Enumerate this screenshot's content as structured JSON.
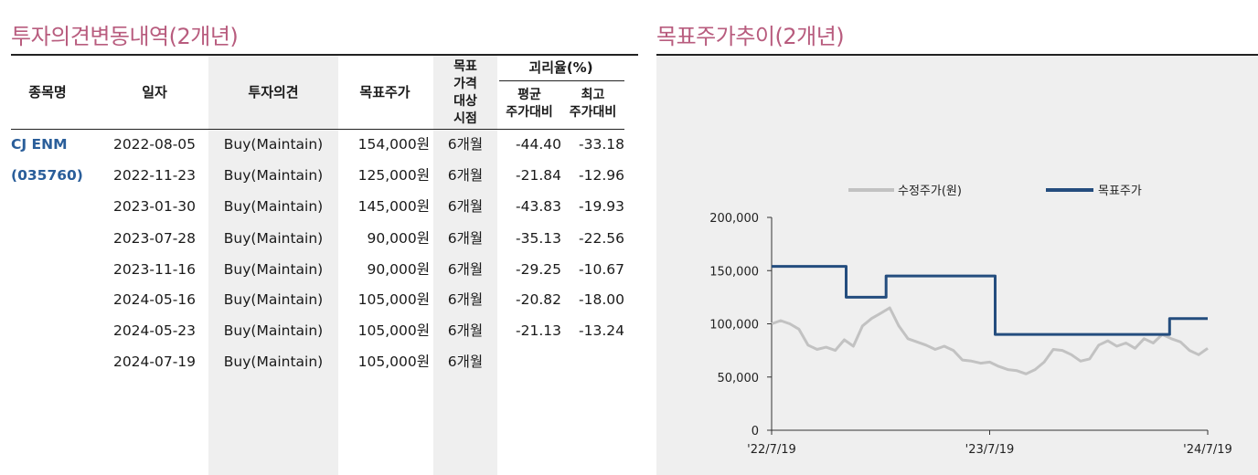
{
  "left_title": "투자의견변동내역(2개년)",
  "right_title": "목표주가추이(2개년)",
  "table": {
    "headers": {
      "name": "종목명",
      "date": "일자",
      "opinion": "투자의견",
      "target": "목표주가",
      "period_lines": [
        "목표",
        "가격",
        "대상",
        "시점"
      ],
      "gap": "괴리율(%)",
      "avg_lines": [
        "평균",
        "주가대비"
      ],
      "max_lines": [
        "최고",
        "주가대비"
      ]
    },
    "stock_name": "CJ ENM",
    "stock_code": "(035760)",
    "rows": [
      {
        "date": "2022-08-05",
        "opinion": "Buy(Maintain)",
        "target": "154,000원",
        "period": "6개월",
        "avg": "-44.40",
        "max": "-33.18"
      },
      {
        "date": "2022-11-23",
        "opinion": "Buy(Maintain)",
        "target": "125,000원",
        "period": "6개월",
        "avg": "-21.84",
        "max": "-12.96"
      },
      {
        "date": "2023-01-30",
        "opinion": "Buy(Maintain)",
        "target": "145,000원",
        "period": "6개월",
        "avg": "-43.83",
        "max": "-19.93"
      },
      {
        "date": "2023-07-28",
        "opinion": "Buy(Maintain)",
        "target": "90,000원",
        "period": "6개월",
        "avg": "-35.13",
        "max": "-22.56"
      },
      {
        "date": "2023-11-16",
        "opinion": "Buy(Maintain)",
        "target": "90,000원",
        "period": "6개월",
        "avg": "-29.25",
        "max": "-10.67"
      },
      {
        "date": "2024-05-16",
        "opinion": "Buy(Maintain)",
        "target": "105,000원",
        "period": "6개월",
        "avg": "-20.82",
        "max": "-18.00"
      },
      {
        "date": "2024-05-23",
        "opinion": "Buy(Maintain)",
        "target": "105,000원",
        "period": "6개월",
        "avg": "-21.13",
        "max": "-13.24"
      },
      {
        "date": "2024-07-19",
        "opinion": "Buy(Maintain)",
        "target": "105,000원",
        "period": "6개월",
        "avg": "",
        "max": ""
      }
    ]
  },
  "chart_data": {
    "type": "line",
    "title": "목표주가추이(2개년)",
    "xlabel": "",
    "ylabel": "",
    "x_range": [
      "2022-07-19",
      "2024-07-19"
    ],
    "x_tick_labels": [
      "'22/7/19",
      "'23/7/19",
      "'24/7/19"
    ],
    "x_tick_positions": [
      0,
      12,
      24
    ],
    "ylim": [
      0,
      200000
    ],
    "y_ticks": [
      0,
      50000,
      100000,
      150000,
      200000
    ],
    "y_tick_labels": [
      "0",
      "50,000",
      "100,000",
      "150,000",
      "200,000"
    ],
    "legend": [
      "수정주가(원)",
      "목표주가"
    ],
    "series": [
      {
        "name": "수정주가(원)",
        "color": "#c2c2c2",
        "x_months": [
          0,
          0.5,
          1,
          1.5,
          2,
          2.5,
          3,
          3.5,
          4,
          4.5,
          5,
          5.5,
          6,
          6.5,
          7,
          7.5,
          8,
          8.5,
          9,
          9.5,
          10,
          10.5,
          11,
          11.5,
          12,
          12.5,
          13,
          13.5,
          14,
          14.5,
          15,
          15.5,
          16,
          16.5,
          17,
          17.5,
          18,
          18.5,
          19,
          19.5,
          20,
          20.5,
          21,
          21.5,
          22,
          22.5,
          23,
          23.5,
          24
        ],
        "values": [
          100000,
          103000,
          100000,
          95000,
          80000,
          76000,
          78000,
          75000,
          85000,
          79000,
          98000,
          105000,
          110000,
          115000,
          98000,
          86000,
          83000,
          80000,
          76000,
          79000,
          75000,
          66000,
          65000,
          63000,
          64000,
          60000,
          57000,
          56000,
          53000,
          57000,
          64000,
          76000,
          75000,
          71000,
          65000,
          67000,
          80000,
          84000,
          79000,
          82000,
          77000,
          86000,
          82000,
          90000,
          86000,
          83000,
          75000,
          71000,
          77000
        ]
      },
      {
        "name": "목표주가",
        "color": "#244d7e",
        "x_months": [
          0,
          4.1,
          4.1,
          6.3,
          6.3,
          12.3,
          12.3,
          21.9,
          21.9,
          22.1,
          22.1,
          24
        ],
        "values": [
          154000,
          154000,
          125000,
          125000,
          145000,
          145000,
          90000,
          90000,
          105000,
          105000,
          105000,
          105000
        ]
      }
    ]
  },
  "colors": {
    "title": "#b85c7e",
    "stock_name": "#2a5e9a",
    "price_line": "#c2c2c2",
    "target_line": "#244d7e",
    "shade": "#efefef"
  }
}
